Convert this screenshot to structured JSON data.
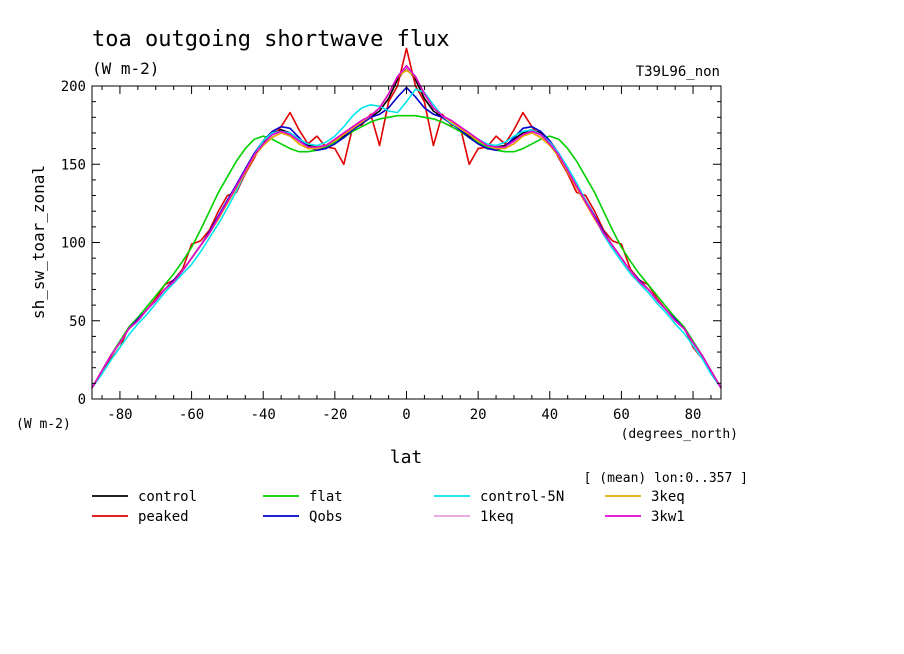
{
  "chart_data": {
    "type": "line",
    "title": "toa outgoing shortwave flux",
    "subtitle": "(W m-2)",
    "top_right_label": "T39L96_non",
    "ylabel": "sh_sw_toar_zonal",
    "y_units": "(W m-2)",
    "xlabel": "lat",
    "x_units": "(degrees_north)",
    "region_note": "[ (mean) lon:0..357 ]",
    "xlim": [
      -87.8,
      87.8
    ],
    "ylim": [
      0,
      200
    ],
    "x_ticks": [
      -80,
      -60,
      -40,
      -20,
      0,
      20,
      40,
      60,
      80
    ],
    "x_tick_labels": [
      "-80",
      "-60",
      "-40",
      "-20",
      "0",
      "20",
      "40",
      "60",
      "80"
    ],
    "y_ticks": [
      0,
      50,
      100,
      150,
      200
    ],
    "y_tick_labels": [
      "0",
      "50",
      "100",
      "150",
      "200"
    ],
    "grid": false,
    "legend_position": "bottom",
    "lat": [
      -87.8,
      -85,
      -82.5,
      -80,
      -77.5,
      -75,
      -72.5,
      -70,
      -67.5,
      -65,
      -62.5,
      -60,
      -57.5,
      -55,
      -52.5,
      -50,
      -47.5,
      -45,
      -42.5,
      -40,
      -37.5,
      -35,
      -32.5,
      -30,
      -27.5,
      -25,
      -22.5,
      -20,
      -17.5,
      -15,
      -12.5,
      -10,
      -7.5,
      -5,
      -2.5,
      0,
      2.5,
      5,
      7.5,
      10,
      12.5,
      15,
      17.5,
      20,
      22.5,
      25,
      27.5,
      30,
      32.5,
      35,
      37.5,
      40,
      42.5,
      45,
      47.5,
      50,
      52.5,
      55,
      57.5,
      60,
      62.5,
      65,
      67.5,
      70,
      72.5,
      75,
      77.5,
      80,
      82.5,
      85,
      87.8
    ],
    "series": [
      {
        "name": "control",
        "color": "#000000",
        "values": [
          7,
          18,
          28,
          36,
          45,
          50,
          57,
          63,
          70,
          75,
          82,
          90,
          98,
          106,
          116,
          126,
          136,
          146,
          156,
          164,
          170,
          172,
          170,
          166,
          162,
          161,
          162,
          165,
          168,
          172,
          176,
          180,
          184,
          192,
          204,
          212,
          204,
          192,
          184,
          180,
          176,
          172,
          168,
          165,
          162,
          161,
          162,
          166,
          170,
          172,
          170,
          164,
          156,
          146,
          136,
          126,
          116,
          106,
          98,
          90,
          82,
          75,
          70,
          63,
          57,
          50,
          45,
          36,
          28,
          18,
          7
        ]
      },
      {
        "name": "peaked",
        "color": "#e00000",
        "values": [
          7,
          18,
          26,
          33,
          46,
          50,
          57,
          64,
          73,
          76,
          83,
          99,
          101,
          108,
          120,
          130,
          132,
          144,
          154,
          165,
          167,
          174,
          183,
          172,
          163,
          168,
          161,
          160,
          150,
          174,
          175,
          182,
          162,
          190,
          200,
          224,
          200,
          190,
          162,
          182,
          175,
          174,
          150,
          160,
          161,
          168,
          163,
          172,
          183,
          174,
          167,
          165,
          154,
          144,
          132,
          130,
          120,
          108,
          101,
          99,
          83,
          76,
          73,
          64,
          57,
          50,
          46,
          33,
          26,
          18,
          7
        ]
      },
      {
        "name": "flat",
        "color": "#00d000",
        "values": [
          7,
          18,
          28,
          37,
          46,
          52,
          59,
          66,
          73,
          80,
          88,
          97,
          108,
          120,
          132,
          142,
          152,
          160,
          166,
          168,
          166,
          163,
          160,
          158,
          158,
          159,
          161,
          164,
          167,
          171,
          174,
          177,
          179,
          180,
          181,
          181,
          181,
          180,
          179,
          177,
          174,
          171,
          167,
          164,
          161,
          159,
          158,
          158,
          160,
          163,
          166,
          168,
          166,
          160,
          152,
          142,
          132,
          120,
          108,
          97,
          88,
          80,
          73,
          66,
          59,
          52,
          46,
          37,
          28,
          18,
          7
        ]
      },
      {
        "name": "Qobs",
        "color": "#0000cc",
        "values": [
          7,
          18,
          28,
          36,
          45,
          51,
          57,
          63,
          70,
          76,
          82,
          90,
          98,
          107,
          117,
          127,
          137,
          147,
          157,
          165,
          171,
          174,
          173,
          167,
          161,
          159,
          160,
          163,
          167,
          172,
          176,
          180,
          182,
          186,
          193,
          199,
          193,
          186,
          182,
          180,
          176,
          172,
          167,
          163,
          160,
          159,
          161,
          167,
          173,
          174,
          171,
          165,
          157,
          147,
          137,
          127,
          117,
          107,
          98,
          90,
          82,
          76,
          70,
          63,
          57,
          51,
          45,
          36,
          28,
          18,
          7
        ]
      },
      {
        "name": "control-5N",
        "color": "#00e5ee",
        "values": [
          7,
          16,
          25,
          33,
          41,
          48,
          54,
          61,
          68,
          74,
          80,
          86,
          94,
          103,
          112,
          122,
          133,
          145,
          156,
          165,
          170,
          171,
          170,
          166,
          163,
          162,
          164,
          168,
          174,
          181,
          186,
          188,
          187,
          184,
          183,
          190,
          198,
          196,
          188,
          181,
          176,
          173,
          170,
          166,
          163,
          162,
          164,
          168,
          171,
          172,
          169,
          164,
          157,
          148,
          138,
          127,
          116,
          105,
          96,
          88,
          80,
          74,
          68,
          61,
          55,
          48,
          42,
          34,
          26,
          16,
          7
        ]
      },
      {
        "name": "1keq",
        "color": "#e8a0e0",
        "values": [
          7,
          18,
          28,
          36,
          45,
          50,
          57,
          63,
          70,
          75,
          82,
          90,
          98,
          106,
          116,
          126,
          136,
          146,
          156,
          163,
          168,
          170,
          168,
          164,
          161,
          160,
          162,
          165,
          169,
          173,
          177,
          181,
          186,
          195,
          206,
          212,
          206,
          195,
          186,
          181,
          177,
          173,
          169,
          165,
          162,
          160,
          161,
          164,
          168,
          170,
          168,
          163,
          156,
          146,
          136,
          126,
          116,
          106,
          98,
          90,
          82,
          75,
          70,
          63,
          57,
          50,
          45,
          36,
          28,
          18,
          7
        ]
      },
      {
        "name": "3keq",
        "color": "#e8a800",
        "values": [
          7,
          18,
          28,
          36,
          45,
          50,
          57,
          63,
          70,
          75,
          82,
          90,
          98,
          106,
          115,
          125,
          135,
          145,
          155,
          162,
          167,
          170,
          168,
          163,
          160,
          160,
          162,
          165,
          169,
          173,
          177,
          181,
          186,
          195,
          206,
          210,
          206,
          195,
          186,
          181,
          177,
          173,
          169,
          165,
          162,
          160,
          160,
          163,
          168,
          170,
          167,
          162,
          155,
          145,
          135,
          125,
          115,
          106,
          98,
          90,
          82,
          75,
          70,
          63,
          57,
          50,
          45,
          36,
          28,
          18,
          7
        ]
      },
      {
        "name": "3kw1",
        "color": "#e000d0",
        "values": [
          7,
          18,
          28,
          36,
          45,
          50,
          57,
          63,
          70,
          75,
          82,
          90,
          98,
          106,
          116,
          126,
          136,
          146,
          156,
          163,
          169,
          171,
          169,
          165,
          161,
          161,
          162,
          166,
          170,
          174,
          178,
          181,
          186,
          195,
          206,
          213,
          206,
          195,
          186,
          181,
          178,
          174,
          170,
          166,
          162,
          161,
          161,
          165,
          169,
          171,
          169,
          163,
          156,
          146,
          136,
          126,
          116,
          106,
          98,
          90,
          82,
          75,
          70,
          63,
          57,
          50,
          45,
          36,
          28,
          18,
          7
        ]
      }
    ],
    "legend_order": [
      "control",
      "flat",
      "control-5N",
      "3keq",
      "peaked",
      "Qobs",
      "1keq",
      "3kw1"
    ]
  }
}
